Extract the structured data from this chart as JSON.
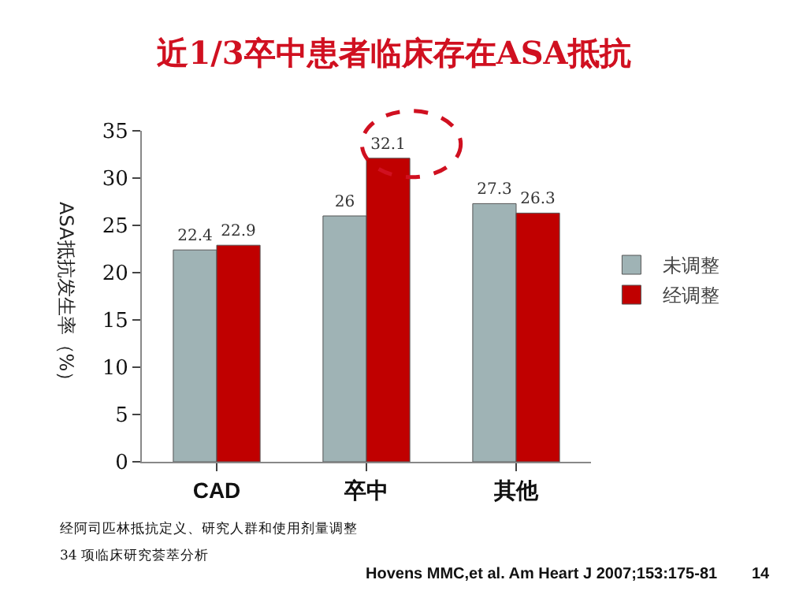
{
  "chart_data": {
    "type": "bar",
    "title": "近1/3卒中患者临床存在ASA抵抗",
    "ylabel": "ASA抵抗发生率（%）",
    "categories": [
      "CAD",
      "卒中",
      "其他"
    ],
    "series": [
      {
        "name": "未调整",
        "color": "#9fb3b5",
        "values": [
          22.4,
          26,
          27.3
        ]
      },
      {
        "name": "经调整",
        "color": "#c00000",
        "values": [
          22.9,
          32.1,
          26.3
        ]
      }
    ],
    "ylim": [
      0,
      35
    ],
    "yticks": [
      0,
      5,
      10,
      15,
      20,
      25,
      30,
      35
    ],
    "data_labels": true,
    "legend": "right",
    "grid": false,
    "annotations": [
      "经阿司匹林抵抗定义、研究人群和使用剂量调整",
      "34 项临床研究荟萃分析",
      "Hovens MMC,et al. Am Heart J 2007;153:175-81",
      "14"
    ]
  }
}
